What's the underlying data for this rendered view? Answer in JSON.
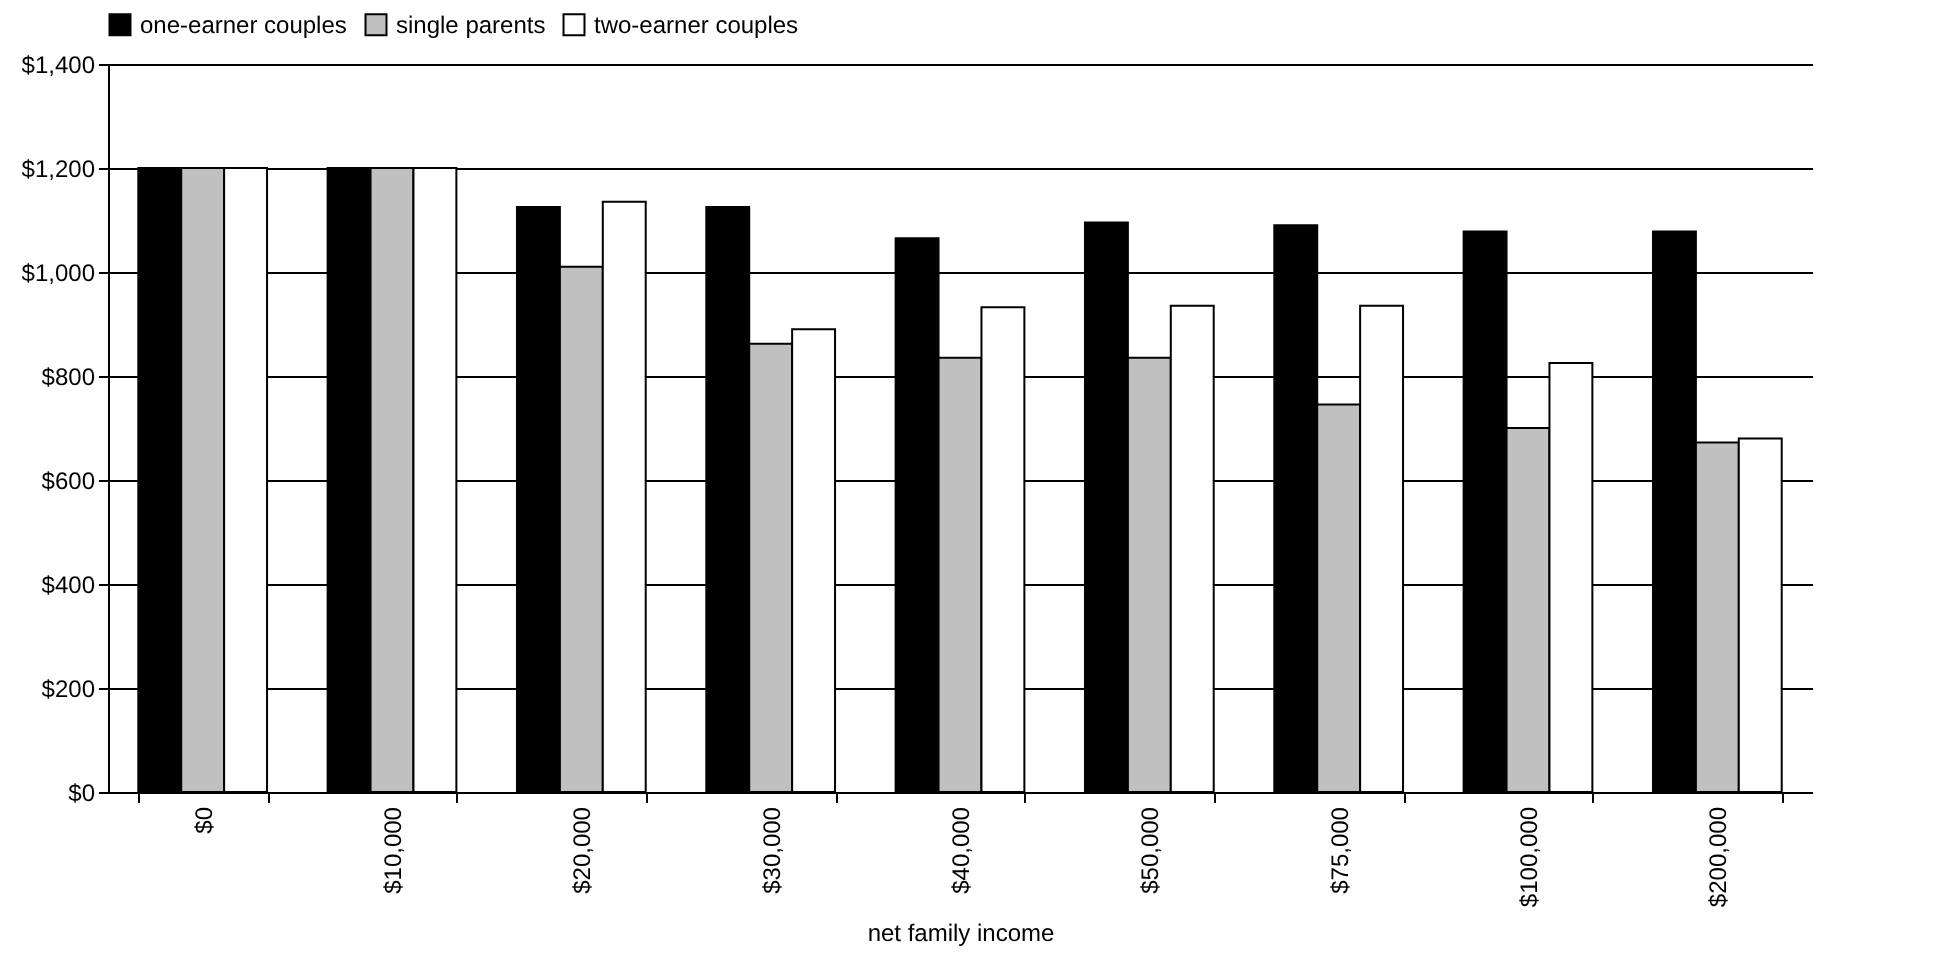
{
  "chart_data": {
    "type": "bar",
    "xlabel": "net family income",
    "categories": [
      "$0",
      "$10,000",
      "$20,000",
      "$30,000",
      "$40,000",
      "$50,000",
      "$75,000",
      "$100,000",
      "$200,000"
    ],
    "series": [
      {
        "name": "one-earner couples",
        "color": "#000000",
        "values": [
          1200,
          1200,
          1125,
          1125,
          1065,
          1095,
          1090,
          1078,
          1078
        ]
      },
      {
        "name": "single parents",
        "color": "#c0c0c0",
        "values": [
          1200,
          1200,
          1010,
          862,
          835,
          835,
          745,
          700,
          672
        ]
      },
      {
        "name": "two-earner couples",
        "color": "#ffffff",
        "values": [
          1200,
          1200,
          1135,
          890,
          932,
          935,
          935,
          825,
          680
        ]
      }
    ],
    "ylim": [
      0,
      1400
    ],
    "yticks": [
      {
        "value": 0,
        "label": "$0"
      },
      {
        "value": 200,
        "label": "$200"
      },
      {
        "value": 400,
        "label": "$400"
      },
      {
        "value": 600,
        "label": "$600"
      },
      {
        "value": 800,
        "label": "$800"
      },
      {
        "value": 1000,
        "label": "$1,000"
      },
      {
        "value": 1200,
        "label": "$1,200"
      },
      {
        "value": 1400,
        "label": "$1,400"
      }
    ],
    "grid": "y",
    "legend": "top"
  }
}
